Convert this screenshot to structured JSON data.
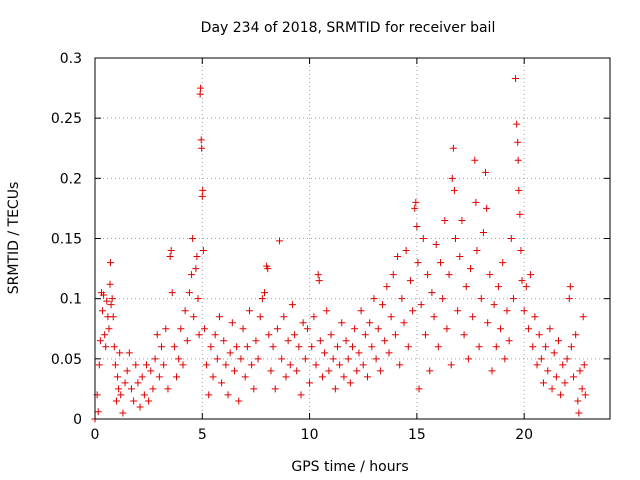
{
  "chart_data": {
    "type": "scatter",
    "title": "Day 234 of 2018, SRMTID for receiver bail",
    "xlabel": "GPS time / hours",
    "ylabel": "SRMTID / TECUs",
    "xlim": [
      0,
      24
    ],
    "ylim": [
      0,
      0.3
    ],
    "xticks": [
      0,
      5,
      10,
      15,
      20
    ],
    "xtick_labels": [
      "0",
      "5",
      "10",
      "15",
      "20"
    ],
    "yticks": [
      0,
      0.05,
      0.1,
      0.15,
      0.2,
      0.25,
      0.3
    ],
    "ytick_labels": [
      "0",
      "0.05",
      "0.1",
      "0.15",
      "0.2",
      "0.25",
      "0.3"
    ],
    "grid": true,
    "marker": "+",
    "color": "#e00000",
    "series": [
      {
        "name": "SRMTID",
        "points": [
          [
            0.0,
            0.0
          ],
          [
            0.1,
            0.02
          ],
          [
            0.15,
            0.006
          ],
          [
            0.2,
            0.045
          ],
          [
            0.25,
            0.065
          ],
          [
            0.3,
            0.105
          ],
          [
            0.35,
            0.09
          ],
          [
            0.4,
            0.103
          ],
          [
            0.45,
            0.07
          ],
          [
            0.5,
            0.06
          ],
          [
            0.55,
            0.098
          ],
          [
            0.6,
            0.085
          ],
          [
            0.65,
            0.075
          ],
          [
            0.7,
            0.112
          ],
          [
            0.72,
            0.13
          ],
          [
            0.75,
            0.095
          ],
          [
            0.8,
            0.1
          ],
          [
            0.85,
            0.085
          ],
          [
            0.9,
            0.06
          ],
          [
            0.95,
            0.045
          ],
          [
            1.0,
            0.015
          ],
          [
            1.05,
            0.035
          ],
          [
            1.1,
            0.025
          ],
          [
            1.15,
            0.055
          ],
          [
            1.2,
            0.02
          ],
          [
            1.3,
            0.005
          ],
          [
            1.4,
            0.03
          ],
          [
            1.5,
            0.04
          ],
          [
            1.6,
            0.055
          ],
          [
            1.7,
            0.025
          ],
          [
            1.8,
            0.015
          ],
          [
            1.9,
            0.045
          ],
          [
            2.0,
            0.03
          ],
          [
            2.1,
            0.01
          ],
          [
            2.2,
            0.035
          ],
          [
            2.3,
            0.02
          ],
          [
            2.4,
            0.045
          ],
          [
            2.5,
            0.015
          ],
          [
            2.6,
            0.04
          ],
          [
            2.7,
            0.025
          ],
          [
            2.8,
            0.05
          ],
          [
            2.9,
            0.07
          ],
          [
            3.0,
            0.035
          ],
          [
            3.1,
            0.06
          ],
          [
            3.2,
            0.045
          ],
          [
            3.3,
            0.075
          ],
          [
            3.4,
            0.025
          ],
          [
            3.5,
            0.135
          ],
          [
            3.55,
            0.14
          ],
          [
            3.6,
            0.105
          ],
          [
            3.7,
            0.06
          ],
          [
            3.8,
            0.035
          ],
          [
            3.9,
            0.05
          ],
          [
            4.0,
            0.075
          ],
          [
            4.1,
            0.045
          ],
          [
            4.2,
            0.09
          ],
          [
            4.3,
            0.065
          ],
          [
            4.4,
            0.105
          ],
          [
            4.5,
            0.12
          ],
          [
            4.55,
            0.15
          ],
          [
            4.6,
            0.085
          ],
          [
            4.7,
            0.125
          ],
          [
            4.75,
            0.135
          ],
          [
            4.8,
            0.1
          ],
          [
            4.85,
            0.07
          ],
          [
            4.9,
            0.27
          ],
          [
            4.92,
            0.275
          ],
          [
            4.95,
            0.232
          ],
          [
            4.97,
            0.225
          ],
          [
            5.0,
            0.185
          ],
          [
            5.02,
            0.19
          ],
          [
            5.05,
            0.14
          ],
          [
            5.1,
            0.075
          ],
          [
            5.2,
            0.045
          ],
          [
            5.3,
            0.02
          ],
          [
            5.4,
            0.06
          ],
          [
            5.5,
            0.035
          ],
          [
            5.6,
            0.07
          ],
          [
            5.7,
            0.05
          ],
          [
            5.8,
            0.085
          ],
          [
            5.9,
            0.03
          ],
          [
            6.0,
            0.065
          ],
          [
            6.1,
            0.045
          ],
          [
            6.2,
            0.02
          ],
          [
            6.3,
            0.055
          ],
          [
            6.4,
            0.08
          ],
          [
            6.5,
            0.04
          ],
          [
            6.6,
            0.06
          ],
          [
            6.7,
            0.015
          ],
          [
            6.8,
            0.05
          ],
          [
            6.9,
            0.075
          ],
          [
            7.0,
            0.035
          ],
          [
            7.1,
            0.06
          ],
          [
            7.2,
            0.09
          ],
          [
            7.3,
            0.045
          ],
          [
            7.4,
            0.025
          ],
          [
            7.5,
            0.065
          ],
          [
            7.6,
            0.05
          ],
          [
            7.7,
            0.085
          ],
          [
            7.8,
            0.1
          ],
          [
            7.9,
            0.105
          ],
          [
            8.0,
            0.127
          ],
          [
            8.05,
            0.125
          ],
          [
            8.1,
            0.07
          ],
          [
            8.2,
            0.04
          ],
          [
            8.3,
            0.06
          ],
          [
            8.4,
            0.025
          ],
          [
            8.5,
            0.075
          ],
          [
            8.6,
            0.148
          ],
          [
            8.7,
            0.05
          ],
          [
            8.8,
            0.085
          ],
          [
            8.9,
            0.035
          ],
          [
            9.0,
            0.065
          ],
          [
            9.1,
            0.045
          ],
          [
            9.2,
            0.095
          ],
          [
            9.3,
            0.07
          ],
          [
            9.4,
            0.04
          ],
          [
            9.5,
            0.06
          ],
          [
            9.6,
            0.02
          ],
          [
            9.7,
            0.08
          ],
          [
            9.8,
            0.05
          ],
          [
            9.9,
            0.075
          ],
          [
            10.0,
            0.03
          ],
          [
            10.1,
            0.06
          ],
          [
            10.2,
            0.085
          ],
          [
            10.3,
            0.045
          ],
          [
            10.4,
            0.12
          ],
          [
            10.45,
            0.115
          ],
          [
            10.5,
            0.065
          ],
          [
            10.6,
            0.035
          ],
          [
            10.7,
            0.055
          ],
          [
            10.8,
            0.09
          ],
          [
            10.9,
            0.04
          ],
          [
            11.0,
            0.07
          ],
          [
            11.1,
            0.05
          ],
          [
            11.2,
            0.025
          ],
          [
            11.3,
            0.06
          ],
          [
            11.4,
            0.045
          ],
          [
            11.5,
            0.08
          ],
          [
            11.6,
            0.035
          ],
          [
            11.7,
            0.065
          ],
          [
            11.8,
            0.05
          ],
          [
            11.9,
            0.03
          ],
          [
            12.0,
            0.06
          ],
          [
            12.1,
            0.075
          ],
          [
            12.2,
            0.04
          ],
          [
            12.3,
            0.055
          ],
          [
            12.4,
            0.09
          ],
          [
            12.5,
            0.045
          ],
          [
            12.6,
            0.07
          ],
          [
            12.7,
            0.035
          ],
          [
            12.8,
            0.08
          ],
          [
            12.9,
            0.06
          ],
          [
            13.0,
            0.1
          ],
          [
            13.1,
            0.05
          ],
          [
            13.2,
            0.075
          ],
          [
            13.3,
            0.04
          ],
          [
            13.4,
            0.095
          ],
          [
            13.5,
            0.065
          ],
          [
            13.6,
            0.11
          ],
          [
            13.7,
            0.055
          ],
          [
            13.8,
            0.085
          ],
          [
            13.9,
            0.12
          ],
          [
            14.0,
            0.07
          ],
          [
            14.1,
            0.135
          ],
          [
            14.2,
            0.045
          ],
          [
            14.3,
            0.1
          ],
          [
            14.4,
            0.08
          ],
          [
            14.5,
            0.14
          ],
          [
            14.6,
            0.06
          ],
          [
            14.7,
            0.115
          ],
          [
            14.8,
            0.09
          ],
          [
            14.9,
            0.175
          ],
          [
            14.95,
            0.18
          ],
          [
            15.0,
            0.16
          ],
          [
            15.05,
            0.13
          ],
          [
            15.1,
            0.025
          ],
          [
            15.2,
            0.095
          ],
          [
            15.3,
            0.15
          ],
          [
            15.4,
            0.07
          ],
          [
            15.5,
            0.12
          ],
          [
            15.6,
            0.04
          ],
          [
            15.7,
            0.105
          ],
          [
            15.8,
            0.085
          ],
          [
            15.9,
            0.145
          ],
          [
            16.0,
            0.06
          ],
          [
            16.1,
            0.13
          ],
          [
            16.2,
            0.1
          ],
          [
            16.3,
            0.165
          ],
          [
            16.4,
            0.075
          ],
          [
            16.5,
            0.12
          ],
          [
            16.6,
            0.045
          ],
          [
            16.65,
            0.2
          ],
          [
            16.7,
            0.225
          ],
          [
            16.75,
            0.19
          ],
          [
            16.8,
            0.15
          ],
          [
            16.9,
            0.09
          ],
          [
            17.0,
            0.135
          ],
          [
            17.1,
            0.165
          ],
          [
            17.2,
            0.07
          ],
          [
            17.3,
            0.11
          ],
          [
            17.4,
            0.05
          ],
          [
            17.5,
            0.125
          ],
          [
            17.6,
            0.085
          ],
          [
            17.7,
            0.215
          ],
          [
            17.75,
            0.18
          ],
          [
            17.8,
            0.14
          ],
          [
            17.9,
            0.06
          ],
          [
            18.0,
            0.1
          ],
          [
            18.1,
            0.155
          ],
          [
            18.2,
            0.205
          ],
          [
            18.25,
            0.175
          ],
          [
            18.3,
            0.08
          ],
          [
            18.4,
            0.12
          ],
          [
            18.5,
            0.04
          ],
          [
            18.6,
            0.095
          ],
          [
            18.7,
            0.06
          ],
          [
            18.8,
            0.11
          ],
          [
            18.9,
            0.075
          ],
          [
            19.0,
            0.13
          ],
          [
            19.1,
            0.05
          ],
          [
            19.2,
            0.09
          ],
          [
            19.3,
            0.065
          ],
          [
            19.4,
            0.15
          ],
          [
            19.5,
            0.1
          ],
          [
            19.6,
            0.283
          ],
          [
            19.65,
            0.245
          ],
          [
            19.7,
            0.23
          ],
          [
            19.72,
            0.215
          ],
          [
            19.75,
            0.19
          ],
          [
            19.8,
            0.17
          ],
          [
            19.85,
            0.14
          ],
          [
            19.9,
            0.115
          ],
          [
            20.0,
            0.09
          ],
          [
            20.1,
            0.11
          ],
          [
            20.2,
            0.075
          ],
          [
            20.3,
            0.12
          ],
          [
            20.4,
            0.06
          ],
          [
            20.5,
            0.085
          ],
          [
            20.6,
            0.045
          ],
          [
            20.7,
            0.07
          ],
          [
            20.8,
            0.05
          ],
          [
            20.9,
            0.03
          ],
          [
            21.0,
            0.06
          ],
          [
            21.1,
            0.04
          ],
          [
            21.2,
            0.075
          ],
          [
            21.3,
            0.025
          ],
          [
            21.4,
            0.055
          ],
          [
            21.5,
            0.035
          ],
          [
            21.6,
            0.065
          ],
          [
            21.7,
            0.02
          ],
          [
            21.8,
            0.045
          ],
          [
            21.9,
            0.03
          ],
          [
            22.0,
            0.05
          ],
          [
            22.1,
            0.1
          ],
          [
            22.15,
            0.11
          ],
          [
            22.2,
            0.06
          ],
          [
            22.3,
            0.035
          ],
          [
            22.4,
            0.07
          ],
          [
            22.5,
            0.015
          ],
          [
            22.55,
            0.005
          ],
          [
            22.6,
            0.04
          ],
          [
            22.7,
            0.025
          ],
          [
            22.75,
            0.085
          ],
          [
            22.8,
            0.045
          ],
          [
            22.85,
            0.02
          ]
        ]
      }
    ]
  }
}
